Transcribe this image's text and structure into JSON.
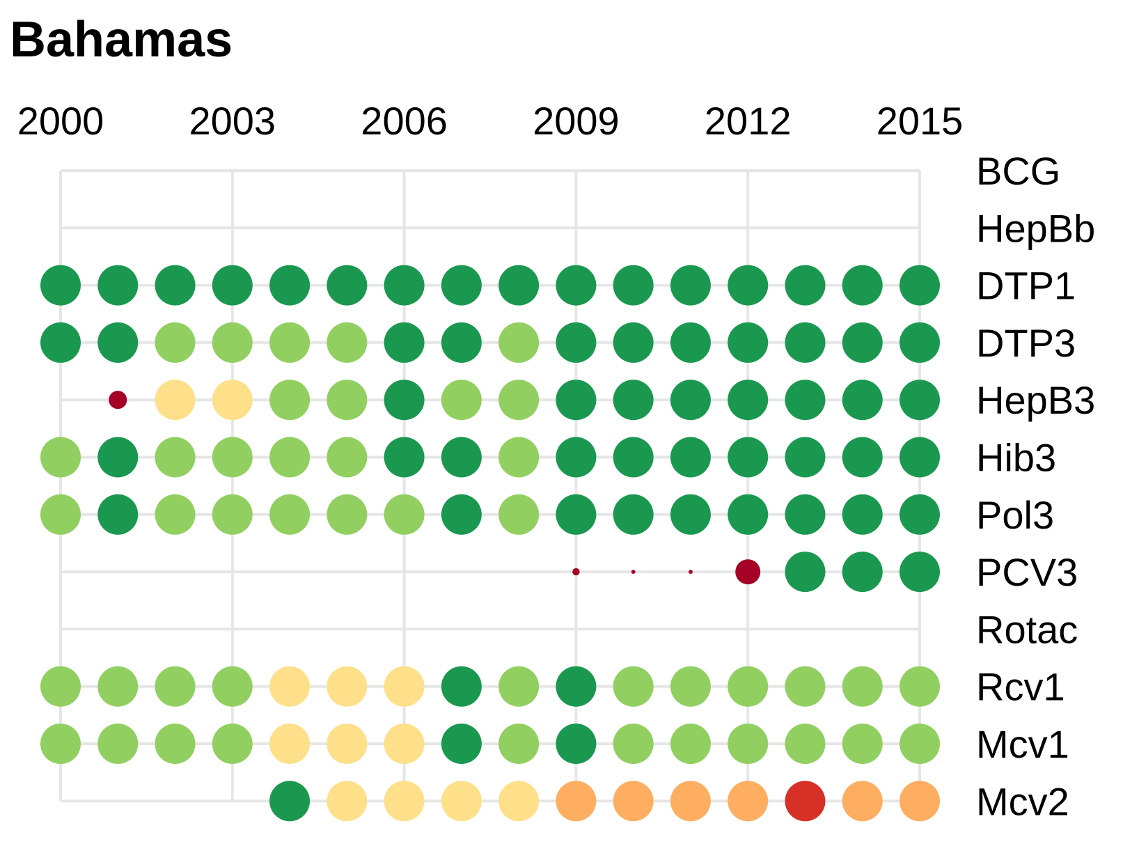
{
  "chart_data": {
    "type": "scatter",
    "title": "Bahamas",
    "x_ticks": [
      2000,
      2003,
      2006,
      2009,
      2012,
      2015
    ],
    "x_range": [
      2000,
      2015
    ],
    "grid": true,
    "legend": "none",
    "vaccines": [
      "BCG",
      "HepBb",
      "DTP1",
      "DTP3",
      "HepB3",
      "Hib3",
      "Pol3",
      "PCV3",
      "Rotac",
      "Rcv1",
      "Mcv1",
      "Mcv2"
    ],
    "color_scale": {
      "very_high": "#1a9850",
      "high": "#91cf60",
      "medium": "#fee08b",
      "low": "#fdae61",
      "very_low": "#d73027",
      "minimal": "#a50026"
    },
    "series": [
      {
        "name": "BCG",
        "points": []
      },
      {
        "name": "HepBb",
        "points": []
      },
      {
        "name": "DTP1",
        "points": [
          {
            "year": 2000,
            "level": "very_high",
            "size": 1
          },
          {
            "year": 2001,
            "level": "very_high",
            "size": 1
          },
          {
            "year": 2002,
            "level": "very_high",
            "size": 1
          },
          {
            "year": 2003,
            "level": "very_high",
            "size": 1
          },
          {
            "year": 2004,
            "level": "very_high",
            "size": 1
          },
          {
            "year": 2005,
            "level": "very_high",
            "size": 1
          },
          {
            "year": 2006,
            "level": "very_high",
            "size": 1
          },
          {
            "year": 2007,
            "level": "very_high",
            "size": 1
          },
          {
            "year": 2008,
            "level": "very_high",
            "size": 1
          },
          {
            "year": 2009,
            "level": "very_high",
            "size": 1
          },
          {
            "year": 2010,
            "level": "very_high",
            "size": 1
          },
          {
            "year": 2011,
            "level": "very_high",
            "size": 1
          },
          {
            "year": 2012,
            "level": "very_high",
            "size": 1
          },
          {
            "year": 2013,
            "level": "very_high",
            "size": 1
          },
          {
            "year": 2014,
            "level": "very_high",
            "size": 1
          },
          {
            "year": 2015,
            "level": "very_high",
            "size": 1
          }
        ]
      },
      {
        "name": "DTP3",
        "points": [
          {
            "year": 2000,
            "level": "very_high",
            "size": 1
          },
          {
            "year": 2001,
            "level": "very_high",
            "size": 1
          },
          {
            "year": 2002,
            "level": "high",
            "size": 1
          },
          {
            "year": 2003,
            "level": "high",
            "size": 1
          },
          {
            "year": 2004,
            "level": "high",
            "size": 1
          },
          {
            "year": 2005,
            "level": "high",
            "size": 1
          },
          {
            "year": 2006,
            "level": "very_high",
            "size": 1
          },
          {
            "year": 2007,
            "level": "very_high",
            "size": 1
          },
          {
            "year": 2008,
            "level": "high",
            "size": 1
          },
          {
            "year": 2009,
            "level": "very_high",
            "size": 1
          },
          {
            "year": 2010,
            "level": "very_high",
            "size": 1
          },
          {
            "year": 2011,
            "level": "very_high",
            "size": 1
          },
          {
            "year": 2012,
            "level": "very_high",
            "size": 1
          },
          {
            "year": 2013,
            "level": "very_high",
            "size": 1
          },
          {
            "year": 2014,
            "level": "very_high",
            "size": 1
          },
          {
            "year": 2015,
            "level": "very_high",
            "size": 1
          }
        ]
      },
      {
        "name": "HepB3",
        "points": [
          {
            "year": 2001,
            "level": "minimal",
            "size": 0.45
          },
          {
            "year": 2002,
            "level": "medium",
            "size": 1
          },
          {
            "year": 2003,
            "level": "medium",
            "size": 1
          },
          {
            "year": 2004,
            "level": "high",
            "size": 1
          },
          {
            "year": 2005,
            "level": "high",
            "size": 1
          },
          {
            "year": 2006,
            "level": "very_high",
            "size": 1
          },
          {
            "year": 2007,
            "level": "high",
            "size": 1
          },
          {
            "year": 2008,
            "level": "high",
            "size": 1
          },
          {
            "year": 2009,
            "level": "very_high",
            "size": 1
          },
          {
            "year": 2010,
            "level": "very_high",
            "size": 1
          },
          {
            "year": 2011,
            "level": "very_high",
            "size": 1
          },
          {
            "year": 2012,
            "level": "very_high",
            "size": 1
          },
          {
            "year": 2013,
            "level": "very_high",
            "size": 1
          },
          {
            "year": 2014,
            "level": "very_high",
            "size": 1
          },
          {
            "year": 2015,
            "level": "very_high",
            "size": 1
          }
        ]
      },
      {
        "name": "Hib3",
        "points": [
          {
            "year": 2000,
            "level": "high",
            "size": 1
          },
          {
            "year": 2001,
            "level": "very_high",
            "size": 1
          },
          {
            "year": 2002,
            "level": "high",
            "size": 1
          },
          {
            "year": 2003,
            "level": "high",
            "size": 1
          },
          {
            "year": 2004,
            "level": "high",
            "size": 1
          },
          {
            "year": 2005,
            "level": "high",
            "size": 1
          },
          {
            "year": 2006,
            "level": "very_high",
            "size": 1
          },
          {
            "year": 2007,
            "level": "very_high",
            "size": 1
          },
          {
            "year": 2008,
            "level": "high",
            "size": 1
          },
          {
            "year": 2009,
            "level": "very_high",
            "size": 1
          },
          {
            "year": 2010,
            "level": "very_high",
            "size": 1
          },
          {
            "year": 2011,
            "level": "very_high",
            "size": 1
          },
          {
            "year": 2012,
            "level": "very_high",
            "size": 1
          },
          {
            "year": 2013,
            "level": "very_high",
            "size": 1
          },
          {
            "year": 2014,
            "level": "very_high",
            "size": 1
          },
          {
            "year": 2015,
            "level": "very_high",
            "size": 1
          }
        ]
      },
      {
        "name": "Pol3",
        "points": [
          {
            "year": 2000,
            "level": "high",
            "size": 1
          },
          {
            "year": 2001,
            "level": "very_high",
            "size": 1
          },
          {
            "year": 2002,
            "level": "high",
            "size": 1
          },
          {
            "year": 2003,
            "level": "high",
            "size": 1
          },
          {
            "year": 2004,
            "level": "high",
            "size": 1
          },
          {
            "year": 2005,
            "level": "high",
            "size": 1
          },
          {
            "year": 2006,
            "level": "high",
            "size": 1
          },
          {
            "year": 2007,
            "level": "very_high",
            "size": 1
          },
          {
            "year": 2008,
            "level": "high",
            "size": 1
          },
          {
            "year": 2009,
            "level": "very_high",
            "size": 1
          },
          {
            "year": 2010,
            "level": "very_high",
            "size": 1
          },
          {
            "year": 2011,
            "level": "very_high",
            "size": 1
          },
          {
            "year": 2012,
            "level": "very_high",
            "size": 1
          },
          {
            "year": 2013,
            "level": "very_high",
            "size": 1
          },
          {
            "year": 2014,
            "level": "very_high",
            "size": 1
          },
          {
            "year": 2015,
            "level": "very_high",
            "size": 1
          }
        ]
      },
      {
        "name": "PCV3",
        "points": [
          {
            "year": 2009,
            "level": "minimal",
            "size": 0.18
          },
          {
            "year": 2010,
            "level": "minimal",
            "size": 0.1
          },
          {
            "year": 2011,
            "level": "minimal",
            "size": 0.1
          },
          {
            "year": 2012,
            "level": "minimal",
            "size": 0.62
          },
          {
            "year": 2013,
            "level": "very_high",
            "size": 1
          },
          {
            "year": 2014,
            "level": "very_high",
            "size": 1
          },
          {
            "year": 2015,
            "level": "very_high",
            "size": 1
          }
        ]
      },
      {
        "name": "Rotac",
        "points": []
      },
      {
        "name": "Rcv1",
        "points": [
          {
            "year": 2000,
            "level": "high",
            "size": 1
          },
          {
            "year": 2001,
            "level": "high",
            "size": 1
          },
          {
            "year": 2002,
            "level": "high",
            "size": 1
          },
          {
            "year": 2003,
            "level": "high",
            "size": 1
          },
          {
            "year": 2004,
            "level": "medium",
            "size": 1
          },
          {
            "year": 2005,
            "level": "medium",
            "size": 1
          },
          {
            "year": 2006,
            "level": "medium",
            "size": 1
          },
          {
            "year": 2007,
            "level": "very_high",
            "size": 1
          },
          {
            "year": 2008,
            "level": "high",
            "size": 1
          },
          {
            "year": 2009,
            "level": "very_high",
            "size": 1
          },
          {
            "year": 2010,
            "level": "high",
            "size": 1
          },
          {
            "year": 2011,
            "level": "high",
            "size": 1
          },
          {
            "year": 2012,
            "level": "high",
            "size": 1
          },
          {
            "year": 2013,
            "level": "high",
            "size": 1
          },
          {
            "year": 2014,
            "level": "high",
            "size": 1
          },
          {
            "year": 2015,
            "level": "high",
            "size": 1
          }
        ]
      },
      {
        "name": "Mcv1",
        "points": [
          {
            "year": 2000,
            "level": "high",
            "size": 1
          },
          {
            "year": 2001,
            "level": "high",
            "size": 1
          },
          {
            "year": 2002,
            "level": "high",
            "size": 1
          },
          {
            "year": 2003,
            "level": "high",
            "size": 1
          },
          {
            "year": 2004,
            "level": "medium",
            "size": 1
          },
          {
            "year": 2005,
            "level": "medium",
            "size": 1
          },
          {
            "year": 2006,
            "level": "medium",
            "size": 1
          },
          {
            "year": 2007,
            "level": "very_high",
            "size": 1
          },
          {
            "year": 2008,
            "level": "high",
            "size": 1
          },
          {
            "year": 2009,
            "level": "very_high",
            "size": 1
          },
          {
            "year": 2010,
            "level": "high",
            "size": 1
          },
          {
            "year": 2011,
            "level": "high",
            "size": 1
          },
          {
            "year": 2012,
            "level": "high",
            "size": 1
          },
          {
            "year": 2013,
            "level": "high",
            "size": 1
          },
          {
            "year": 2014,
            "level": "high",
            "size": 1
          },
          {
            "year": 2015,
            "level": "high",
            "size": 1
          }
        ]
      },
      {
        "name": "Mcv2",
        "points": [
          {
            "year": 2004,
            "level": "very_high",
            "size": 1
          },
          {
            "year": 2005,
            "level": "medium",
            "size": 1
          },
          {
            "year": 2006,
            "level": "medium",
            "size": 1
          },
          {
            "year": 2007,
            "level": "medium",
            "size": 1
          },
          {
            "year": 2008,
            "level": "medium",
            "size": 1
          },
          {
            "year": 2009,
            "level": "low",
            "size": 1
          },
          {
            "year": 2010,
            "level": "low",
            "size": 1
          },
          {
            "year": 2011,
            "level": "low",
            "size": 1
          },
          {
            "year": 2012,
            "level": "low",
            "size": 1
          },
          {
            "year": 2013,
            "level": "very_low",
            "size": 1
          },
          {
            "year": 2014,
            "level": "low",
            "size": 1
          },
          {
            "year": 2015,
            "level": "low",
            "size": 1
          }
        ]
      }
    ]
  }
}
